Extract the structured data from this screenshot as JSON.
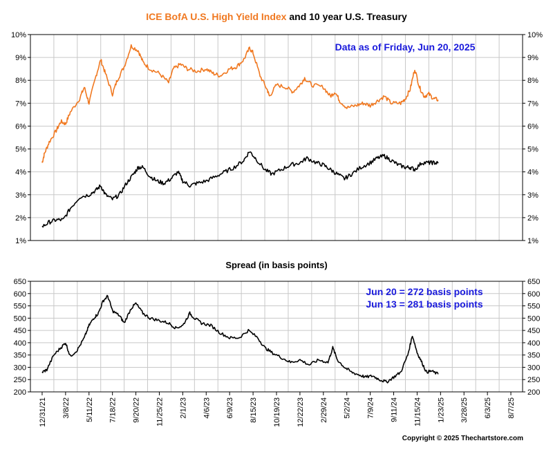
{
  "title": {
    "part1": "ICE BofA U.S. High Yield Index",
    "part2": " and 10 year U.S. Treasury",
    "part1_color": "#f07820",
    "part2_color": "#000000"
  },
  "note_top": "Data as of Friday, Jun 20, 2025",
  "spread_title": "Spread (in basis points)",
  "spread_notes": [
    "Jun 20 = 272 basis points",
    "Jun 13 = 281 basis points"
  ],
  "note_color": "#1a1adc",
  "copyright": "Copyright © 2025 Thechartstore.com",
  "chart_data": [
    {
      "type": "line",
      "title": "ICE BofA U.S. High Yield Index and 10 year U.S. Treasury",
      "ylim": [
        1,
        10
      ],
      "y_ticks": [
        1,
        2,
        3,
        4,
        5,
        6,
        7,
        8,
        9,
        10
      ],
      "y_tick_labels": [
        "1%",
        "2%",
        "3%",
        "4%",
        "5%",
        "6%",
        "7%",
        "8%",
        "9%",
        "10%"
      ],
      "grid": true,
      "series": [
        {
          "key": "high_yield",
          "color": "#f07820",
          "values": [
            [
              0,
              4.4
            ],
            [
              0.1,
              4.8
            ],
            [
              0.3,
              5.3
            ],
            [
              0.6,
              5.8
            ],
            [
              0.8,
              6.2
            ],
            [
              1.0,
              6.1
            ],
            [
              1.2,
              6.6
            ],
            [
              1.6,
              7.2
            ],
            [
              1.8,
              7.7
            ],
            [
              2.0,
              7.0
            ],
            [
              2.3,
              8.2
            ],
            [
              2.5,
              8.9
            ],
            [
              2.7,
              8.3
            ],
            [
              3.0,
              7.4
            ],
            [
              3.2,
              8.0
            ],
            [
              3.5,
              8.6
            ],
            [
              3.8,
              9.5
            ],
            [
              4.1,
              9.3
            ],
            [
              4.3,
              8.8
            ],
            [
              4.6,
              8.5
            ],
            [
              5.0,
              8.3
            ],
            [
              5.4,
              7.9
            ],
            [
              5.6,
              8.5
            ],
            [
              5.9,
              8.7
            ],
            [
              6.2,
              8.5
            ],
            [
              6.6,
              8.4
            ],
            [
              7.0,
              8.5
            ],
            [
              7.3,
              8.3
            ],
            [
              7.6,
              8.2
            ],
            [
              8.0,
              8.5
            ],
            [
              8.3,
              8.6
            ],
            [
              8.6,
              8.9
            ],
            [
              8.85,
              9.4
            ],
            [
              9.0,
              9.2
            ],
            [
              9.3,
              8.2
            ],
            [
              9.6,
              7.6
            ],
            [
              9.7,
              7.3
            ],
            [
              10.0,
              7.8
            ],
            [
              10.4,
              7.7
            ],
            [
              10.7,
              7.5
            ],
            [
              11.0,
              7.8
            ],
            [
              11.2,
              8.1
            ],
            [
              11.5,
              7.8
            ],
            [
              12.0,
              7.7
            ],
            [
              12.3,
              7.3
            ],
            [
              12.5,
              7.5
            ],
            [
              12.7,
              7.1
            ],
            [
              13.0,
              6.8
            ],
            [
              13.4,
              6.9
            ],
            [
              13.7,
              7.0
            ],
            [
              14.0,
              6.9
            ],
            [
              14.3,
              7.1
            ],
            [
              14.6,
              7.3
            ],
            [
              14.9,
              7.0
            ],
            [
              15.3,
              7.0
            ],
            [
              15.5,
              7.2
            ],
            [
              15.7,
              7.6
            ],
            [
              15.9,
              8.5
            ],
            [
              16.1,
              7.7
            ],
            [
              16.3,
              7.3
            ],
            [
              16.5,
              7.4
            ],
            [
              16.7,
              7.2
            ],
            [
              16.9,
              7.15
            ]
          ]
        },
        {
          "key": "treasury_10y",
          "color": "#000000",
          "values": [
            [
              0,
              1.6
            ],
            [
              0.3,
              1.8
            ],
            [
              0.6,
              1.9
            ],
            [
              0.9,
              1.9
            ],
            [
              1.2,
              2.4
            ],
            [
              1.6,
              2.9
            ],
            [
              2.0,
              3.0
            ],
            [
              2.3,
              3.2
            ],
            [
              2.5,
              3.4
            ],
            [
              2.7,
              3.0
            ],
            [
              3.0,
              2.8
            ],
            [
              3.3,
              3.0
            ],
            [
              3.6,
              3.5
            ],
            [
              3.9,
              3.9
            ],
            [
              4.1,
              4.2
            ],
            [
              4.3,
              4.2
            ],
            [
              4.6,
              3.8
            ],
            [
              4.9,
              3.6
            ],
            [
              5.2,
              3.5
            ],
            [
              5.5,
              3.7
            ],
            [
              5.8,
              4.0
            ],
            [
              6.0,
              3.6
            ],
            [
              6.3,
              3.4
            ],
            [
              6.6,
              3.5
            ],
            [
              7.0,
              3.6
            ],
            [
              7.4,
              3.8
            ],
            [
              7.8,
              4.0
            ],
            [
              8.2,
              4.2
            ],
            [
              8.6,
              4.5
            ],
            [
              8.85,
              4.9
            ],
            [
              9.1,
              4.6
            ],
            [
              9.5,
              4.1
            ],
            [
              9.8,
              3.9
            ],
            [
              10.2,
              4.1
            ],
            [
              10.6,
              4.3
            ],
            [
              11.0,
              4.4
            ],
            [
              11.3,
              4.6
            ],
            [
              11.7,
              4.4
            ],
            [
              12.0,
              4.3
            ],
            [
              12.3,
              4.1
            ],
            [
              12.6,
              3.9
            ],
            [
              12.9,
              3.7
            ],
            [
              13.2,
              3.9
            ],
            [
              13.6,
              4.2
            ],
            [
              14.0,
              4.4
            ],
            [
              14.3,
              4.6
            ],
            [
              14.6,
              4.7
            ],
            [
              14.9,
              4.5
            ],
            [
              15.2,
              4.3
            ],
            [
              15.5,
              4.2
            ],
            [
              15.7,
              4.2
            ],
            [
              15.9,
              4.1
            ],
            [
              16.2,
              4.4
            ],
            [
              16.5,
              4.4
            ],
            [
              16.7,
              4.4
            ],
            [
              16.9,
              4.38
            ]
          ]
        }
      ]
    },
    {
      "type": "line",
      "title": "Spread (in basis points)",
      "ylim": [
        200,
        650
      ],
      "y_ticks": [
        200,
        250,
        300,
        350,
        400,
        450,
        500,
        550,
        600,
        650
      ],
      "y_tick_labels": [
        "200",
        "250",
        "300",
        "350",
        "400",
        "450",
        "500",
        "550",
        "600",
        "650"
      ],
      "grid": true,
      "categories": [
        "12/31/21",
        "3/8/22",
        "5/11/22",
        "7/18/22",
        "9/20/22",
        "11/25/22",
        "2/1/23",
        "4/6/23",
        "6/9/23",
        "8/15/23",
        "10/19/23",
        "12/22/23",
        "2/29/24",
        "5/2/24",
        "7/9/24",
        "9/11/24",
        "11/15/24",
        "1/23/25",
        "3/28/25",
        "6/3/25",
        "8/7/25"
      ],
      "series": [
        {
          "key": "spread",
          "color": "#000000",
          "values": [
            [
              0,
              280
            ],
            [
              0.2,
              290
            ],
            [
              0.5,
              350
            ],
            [
              0.8,
              380
            ],
            [
              1.0,
              400
            ],
            [
              1.2,
              345
            ],
            [
              1.5,
              370
            ],
            [
              1.8,
              420
            ],
            [
              2.0,
              470
            ],
            [
              2.2,
              500
            ],
            [
              2.4,
              520
            ],
            [
              2.6,
              570
            ],
            [
              2.8,
              590
            ],
            [
              3.0,
              530
            ],
            [
              3.3,
              510
            ],
            [
              3.5,
              480
            ],
            [
              3.8,
              540
            ],
            [
              4.0,
              560
            ],
            [
              4.3,
              520
            ],
            [
              4.6,
              500
            ],
            [
              5.0,
              490
            ],
            [
              5.4,
              480
            ],
            [
              5.7,
              460
            ],
            [
              6.0,
              470
            ],
            [
              6.3,
              520
            ],
            [
              6.5,
              500
            ],
            [
              6.8,
              480
            ],
            [
              7.2,
              470
            ],
            [
              7.6,
              440
            ],
            [
              8.0,
              420
            ],
            [
              8.4,
              420
            ],
            [
              8.8,
              450
            ],
            [
              9.2,
              420
            ],
            [
              9.5,
              380
            ],
            [
              9.8,
              360
            ],
            [
              10.2,
              340
            ],
            [
              10.6,
              320
            ],
            [
              11.0,
              330
            ],
            [
              11.4,
              310
            ],
            [
              11.8,
              330
            ],
            [
              12.2,
              320
            ],
            [
              12.4,
              380
            ],
            [
              12.6,
              330
            ],
            [
              12.9,
              300
            ],
            [
              13.2,
              280
            ],
            [
              13.5,
              270
            ],
            [
              13.8,
              260
            ],
            [
              14.1,
              265
            ],
            [
              14.4,
              250
            ],
            [
              14.7,
              240
            ],
            [
              15.0,
              260
            ],
            [
              15.3,
              280
            ],
            [
              15.6,
              350
            ],
            [
              15.8,
              430
            ],
            [
              16.0,
              360
            ],
            [
              16.2,
              320
            ],
            [
              16.4,
              280
            ],
            [
              16.6,
              285
            ],
            [
              16.9,
              272
            ]
          ]
        }
      ]
    }
  ]
}
